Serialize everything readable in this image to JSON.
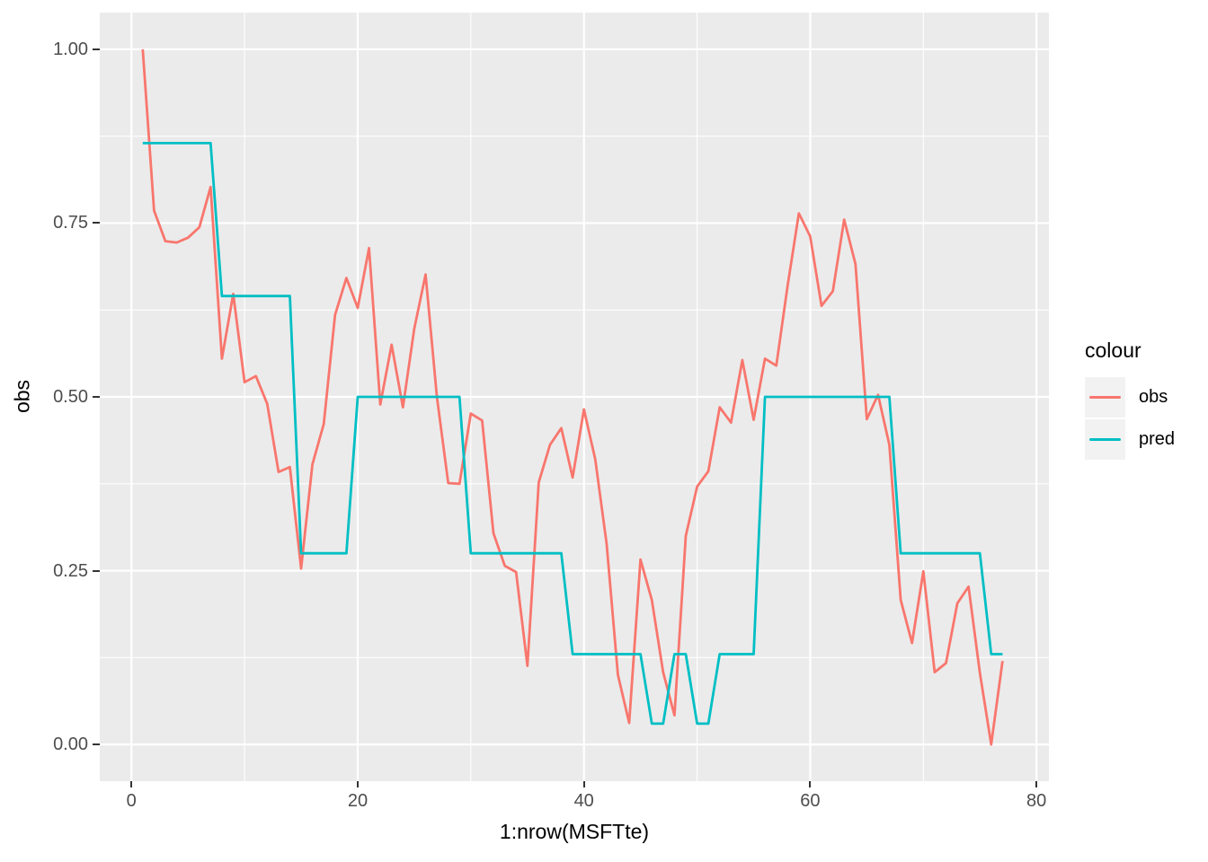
{
  "figure": {
    "panel_bg": "#EBEBEB",
    "grid_color": "#FFFFFF",
    "tick_color": "#333333",
    "tick_label_color": "#4D4D4D",
    "obs_color": "#F8766D",
    "pred_color": "#00BFC4",
    "legend_key_bg": "#F2F2F2"
  },
  "axes": {
    "x": {
      "title": "1:nrow(MSFTte)",
      "major_ticks": [
        0,
        20,
        40,
        60,
        80
      ],
      "major_labels": [
        "0",
        "20",
        "40",
        "60",
        "80"
      ],
      "minor_ticks": [
        10,
        30,
        50,
        70
      ]
    },
    "y": {
      "title": "obs",
      "major_ticks": [
        0,
        0.25,
        0.5,
        0.75,
        1.0
      ],
      "major_labels": [
        "0.00",
        "0.25",
        "0.50",
        "0.75",
        "1.00"
      ],
      "minor_ticks": [
        0.125,
        0.375,
        0.625,
        0.875
      ]
    }
  },
  "legend": {
    "title": "colour",
    "entries": [
      {
        "label": "obs",
        "color": "#F8766D"
      },
      {
        "label": "pred",
        "color": "#00BFC4"
      }
    ]
  },
  "chart_data": {
    "type": "line",
    "title": "",
    "xlabel": "1:nrow(MSFTte)",
    "ylabel": "obs",
    "xlim": [
      -2.8,
      81.1
    ],
    "ylim": [
      -0.0528,
      1.0528
    ],
    "grid": true,
    "legend_position": "right",
    "x": [
      1,
      2,
      3,
      4,
      5,
      6,
      7,
      8,
      9,
      10,
      11,
      12,
      13,
      14,
      15,
      16,
      17,
      18,
      19,
      20,
      21,
      22,
      23,
      24,
      25,
      26,
      27,
      28,
      29,
      30,
      31,
      32,
      33,
      34,
      35,
      36,
      37,
      38,
      39,
      40,
      41,
      42,
      43,
      44,
      45,
      46,
      47,
      48,
      49,
      50,
      51,
      52,
      53,
      54,
      55,
      56,
      57,
      58,
      59,
      60,
      61,
      62,
      63,
      64,
      65,
      66,
      67,
      68,
      69,
      70,
      71,
      72,
      73,
      74,
      75,
      76,
      77
    ],
    "series": [
      {
        "name": "obs",
        "color": "#F8766D",
        "values": [
          1.0,
          0.768,
          0.724,
          0.722,
          0.729,
          0.744,
          0.802,
          0.555,
          0.648,
          0.521,
          0.53,
          0.49,
          0.392,
          0.399,
          0.253,
          0.403,
          0.461,
          0.618,
          0.671,
          0.628,
          0.714,
          0.489,
          0.575,
          0.485,
          0.598,
          0.676,
          0.5,
          0.376,
          0.375,
          0.476,
          0.466,
          0.304,
          0.257,
          0.248,
          0.113,
          0.377,
          0.431,
          0.455,
          0.384,
          0.482,
          0.41,
          0.289,
          0.1,
          0.031,
          0.266,
          0.208,
          0.104,
          0.042,
          0.3,
          0.371,
          0.393,
          0.485,
          0.463,
          0.553,
          0.467,
          0.555,
          0.545,
          0.66,
          0.764,
          0.731,
          0.631,
          0.652,
          0.755,
          0.691,
          0.468,
          0.503,
          0.431,
          0.208,
          0.146,
          0.249,
          0.104,
          0.117,
          0.203,
          0.227,
          0.103,
          0.0,
          0.12
        ]
      },
      {
        "name": "pred",
        "color": "#00BFC4",
        "values": [
          0.865,
          0.865,
          0.865,
          0.865,
          0.865,
          0.865,
          0.865,
          0.645,
          0.645,
          0.645,
          0.645,
          0.645,
          0.645,
          0.645,
          0.275,
          0.275,
          0.275,
          0.275,
          0.275,
          0.5,
          0.5,
          0.5,
          0.5,
          0.5,
          0.5,
          0.5,
          0.5,
          0.5,
          0.5,
          0.275,
          0.275,
          0.275,
          0.275,
          0.275,
          0.275,
          0.275,
          0.275,
          0.275,
          0.13,
          0.13,
          0.13,
          0.13,
          0.13,
          0.13,
          0.13,
          0.03,
          0.03,
          0.13,
          0.13,
          0.03,
          0.03,
          0.13,
          0.13,
          0.13,
          0.13,
          0.5,
          0.5,
          0.5,
          0.5,
          0.5,
          0.5,
          0.5,
          0.5,
          0.5,
          0.5,
          0.5,
          0.5,
          0.275,
          0.275,
          0.275,
          0.275,
          0.275,
          0.275,
          0.275,
          0.275,
          0.13,
          0.13
        ]
      }
    ]
  }
}
